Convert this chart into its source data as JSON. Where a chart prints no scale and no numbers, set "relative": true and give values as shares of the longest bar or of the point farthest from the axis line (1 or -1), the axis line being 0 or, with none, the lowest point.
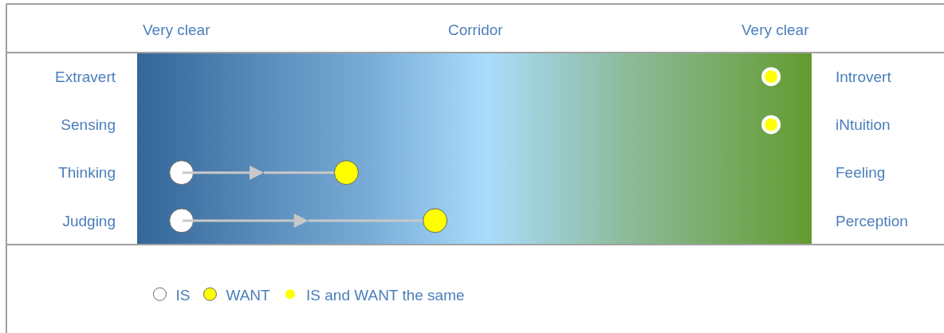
{
  "chart_data": {
    "type": "scatter",
    "orientation": "horizontal",
    "relative": true,
    "categories": [
      "Extravert",
      "Sensing",
      "Thinking",
      "Judging"
    ],
    "y2_categories": [
      "Introvert",
      "iNtuition",
      "Feeling",
      "Perception"
    ],
    "annotations": [
      "Very clear",
      "Corridor",
      "Very clear"
    ],
    "series": [
      {
        "name": "IS",
        "color": "#ffffff",
        "values": [
          null,
          null,
          0.07,
          0.07
        ]
      },
      {
        "name": "WANT",
        "color": "#ffff00",
        "values": [
          null,
          null,
          0.33,
          0.47
        ]
      },
      {
        "name": "IS and WANT the same",
        "color": "#ffff00",
        "values": [
          1,
          1,
          null,
          null
        ]
      }
    ],
    "marker": "circle",
    "grid": false,
    "legend": "bottom"
  }
}
